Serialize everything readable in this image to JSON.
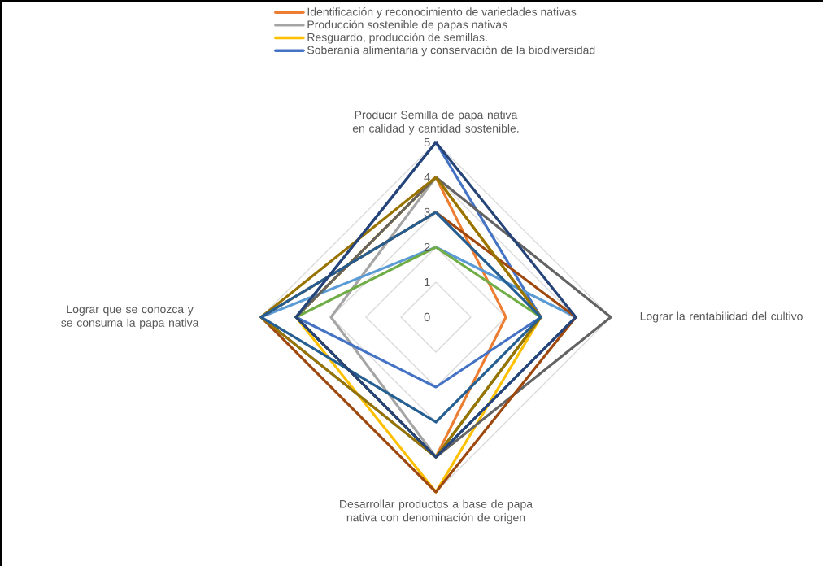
{
  "chart_data": {
    "type": "radar",
    "categories": [
      "Producir Semilla de papa nativa en calidad y cantidad sostenible.",
      "Lograr la rentabilidad del cultivo",
      "Desarrollar productos a base de papa nativa con denominación de origen",
      "Lograr que se conozca y se consuma la papa nativa"
    ],
    "series": [
      {
        "name": "Identificación y reconocimiento de variedades nativas",
        "color": "#ed7d31",
        "values": [
          4,
          2,
          4,
          4
        ]
      },
      {
        "name": "Producción sostenible de papas nativas",
        "color": "#a5a5a5",
        "values": [
          4,
          3,
          4,
          3
        ]
      },
      {
        "name": "Resguardo, producción de semillas.",
        "color": "#ffc000",
        "values": [
          4,
          3,
          5,
          4
        ]
      },
      {
        "name": "Soberanía alimentaria y conservación de la biodiversidad",
        "color": "#4472c4",
        "values": [
          5,
          3,
          2,
          4
        ]
      },
      {
        "color": "#5b9bd5",
        "values": [
          2,
          4,
          4,
          5
        ]
      },
      {
        "color": "#70ad47",
        "values": [
          2,
          3,
          4,
          4
        ]
      },
      {
        "color": "#636363",
        "values": [
          4,
          5,
          4,
          4
        ]
      },
      {
        "color": "#9e480e",
        "values": [
          3,
          4,
          5,
          5
        ]
      },
      {
        "color": "#997300",
        "values": [
          4,
          3,
          4,
          5
        ]
      },
      {
        "color": "#255e91",
        "values": [
          3,
          3,
          3,
          5
        ]
      },
      {
        "color": "#264478",
        "values": [
          5,
          4,
          4,
          4
        ]
      }
    ],
    "ylim": [
      0,
      5
    ],
    "yticks": [
      0,
      1,
      2,
      3,
      4,
      5
    ],
    "grid": true,
    "legend": "top"
  }
}
